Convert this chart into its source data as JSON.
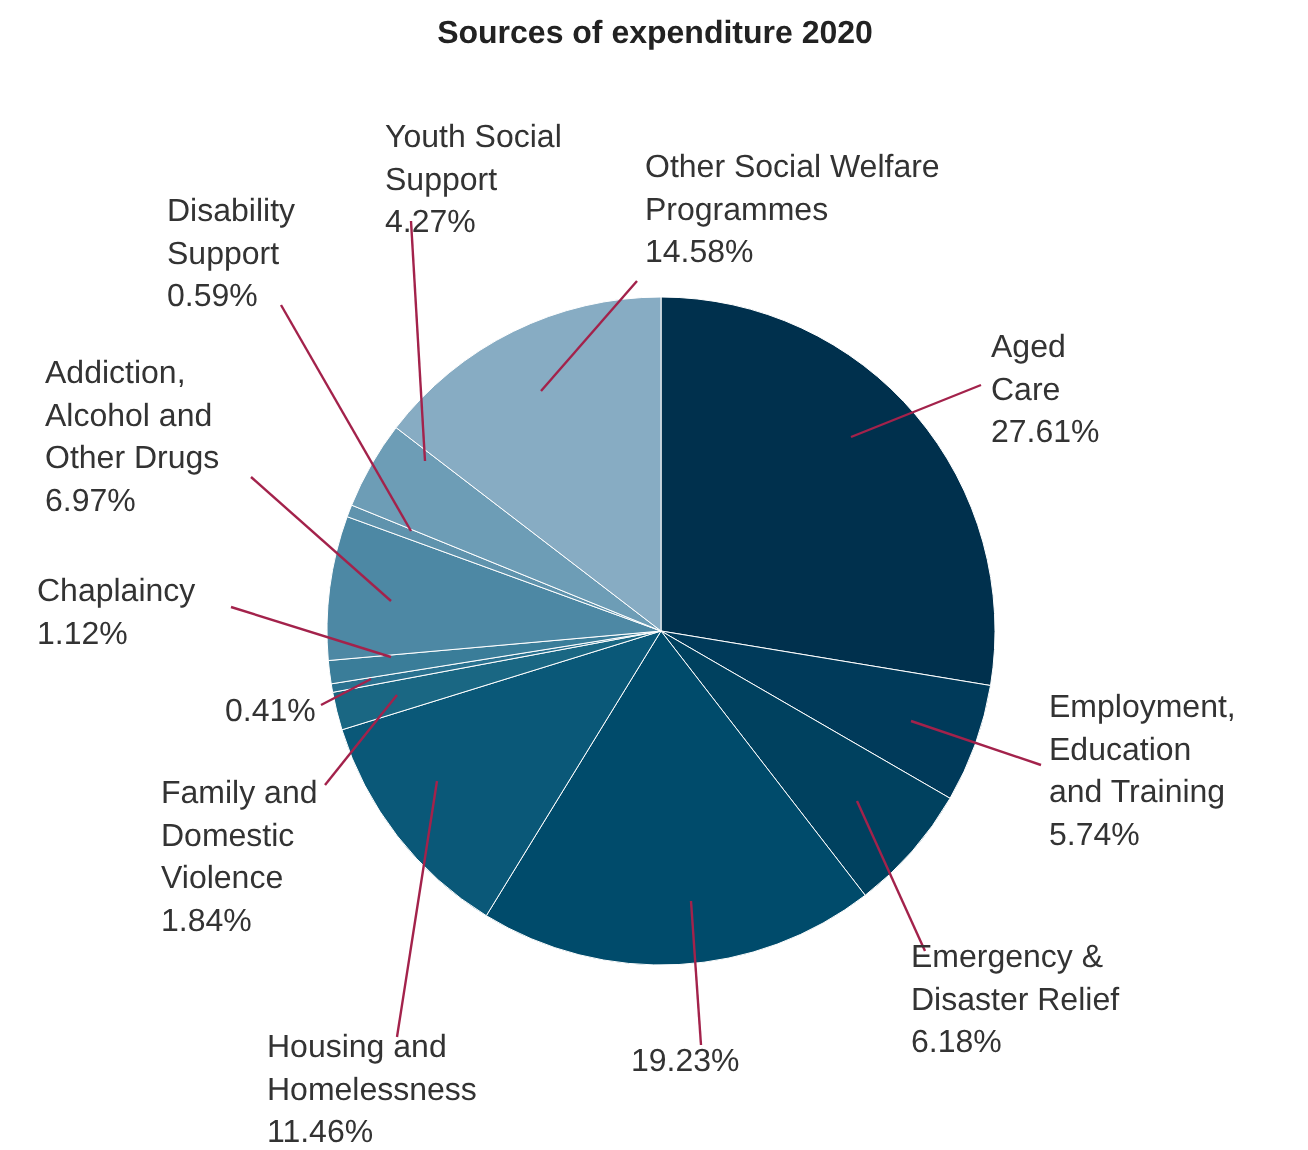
{
  "chart_data": {
    "type": "pie",
    "title": "Sources of expenditure 2020",
    "categories": [
      "Aged\nCare",
      "Employment,\nEducation\nand Training",
      "Emergency &\nDisaster Relief",
      null,
      "Housing and\nHomelessness",
      "Family and\nDomestic\nViolence",
      null,
      "Chaplaincy",
      "Addiction,\nAlcohol and\nOther Drugs",
      "Disability\nSupport",
      "Youth Social\nSupport",
      "Other Social Welfare\nProgrammes"
    ],
    "values": [
      27.61,
      5.74,
      6.18,
      19.23,
      11.46,
      1.84,
      0.41,
      1.12,
      6.97,
      0.59,
      4.27,
      14.58
    ],
    "value_labels": [
      "27.61%",
      "5.74%",
      "6.18%",
      "19.23%",
      "11.46%",
      "1.84%",
      "0.41%",
      "1.12%",
      "6.97%",
      "0.59%",
      "4.27%",
      "14.58%"
    ],
    "colors": [
      "#00304d",
      "#003a5a",
      "#00415f",
      "#004b6b",
      "#0a5878",
      "#1a6783",
      "#2a7290",
      "#3a7d99",
      "#4d88a4",
      "#5f93ad",
      "#6d9db6",
      "#87acc3"
    ],
    "data_labels": false
  }
}
